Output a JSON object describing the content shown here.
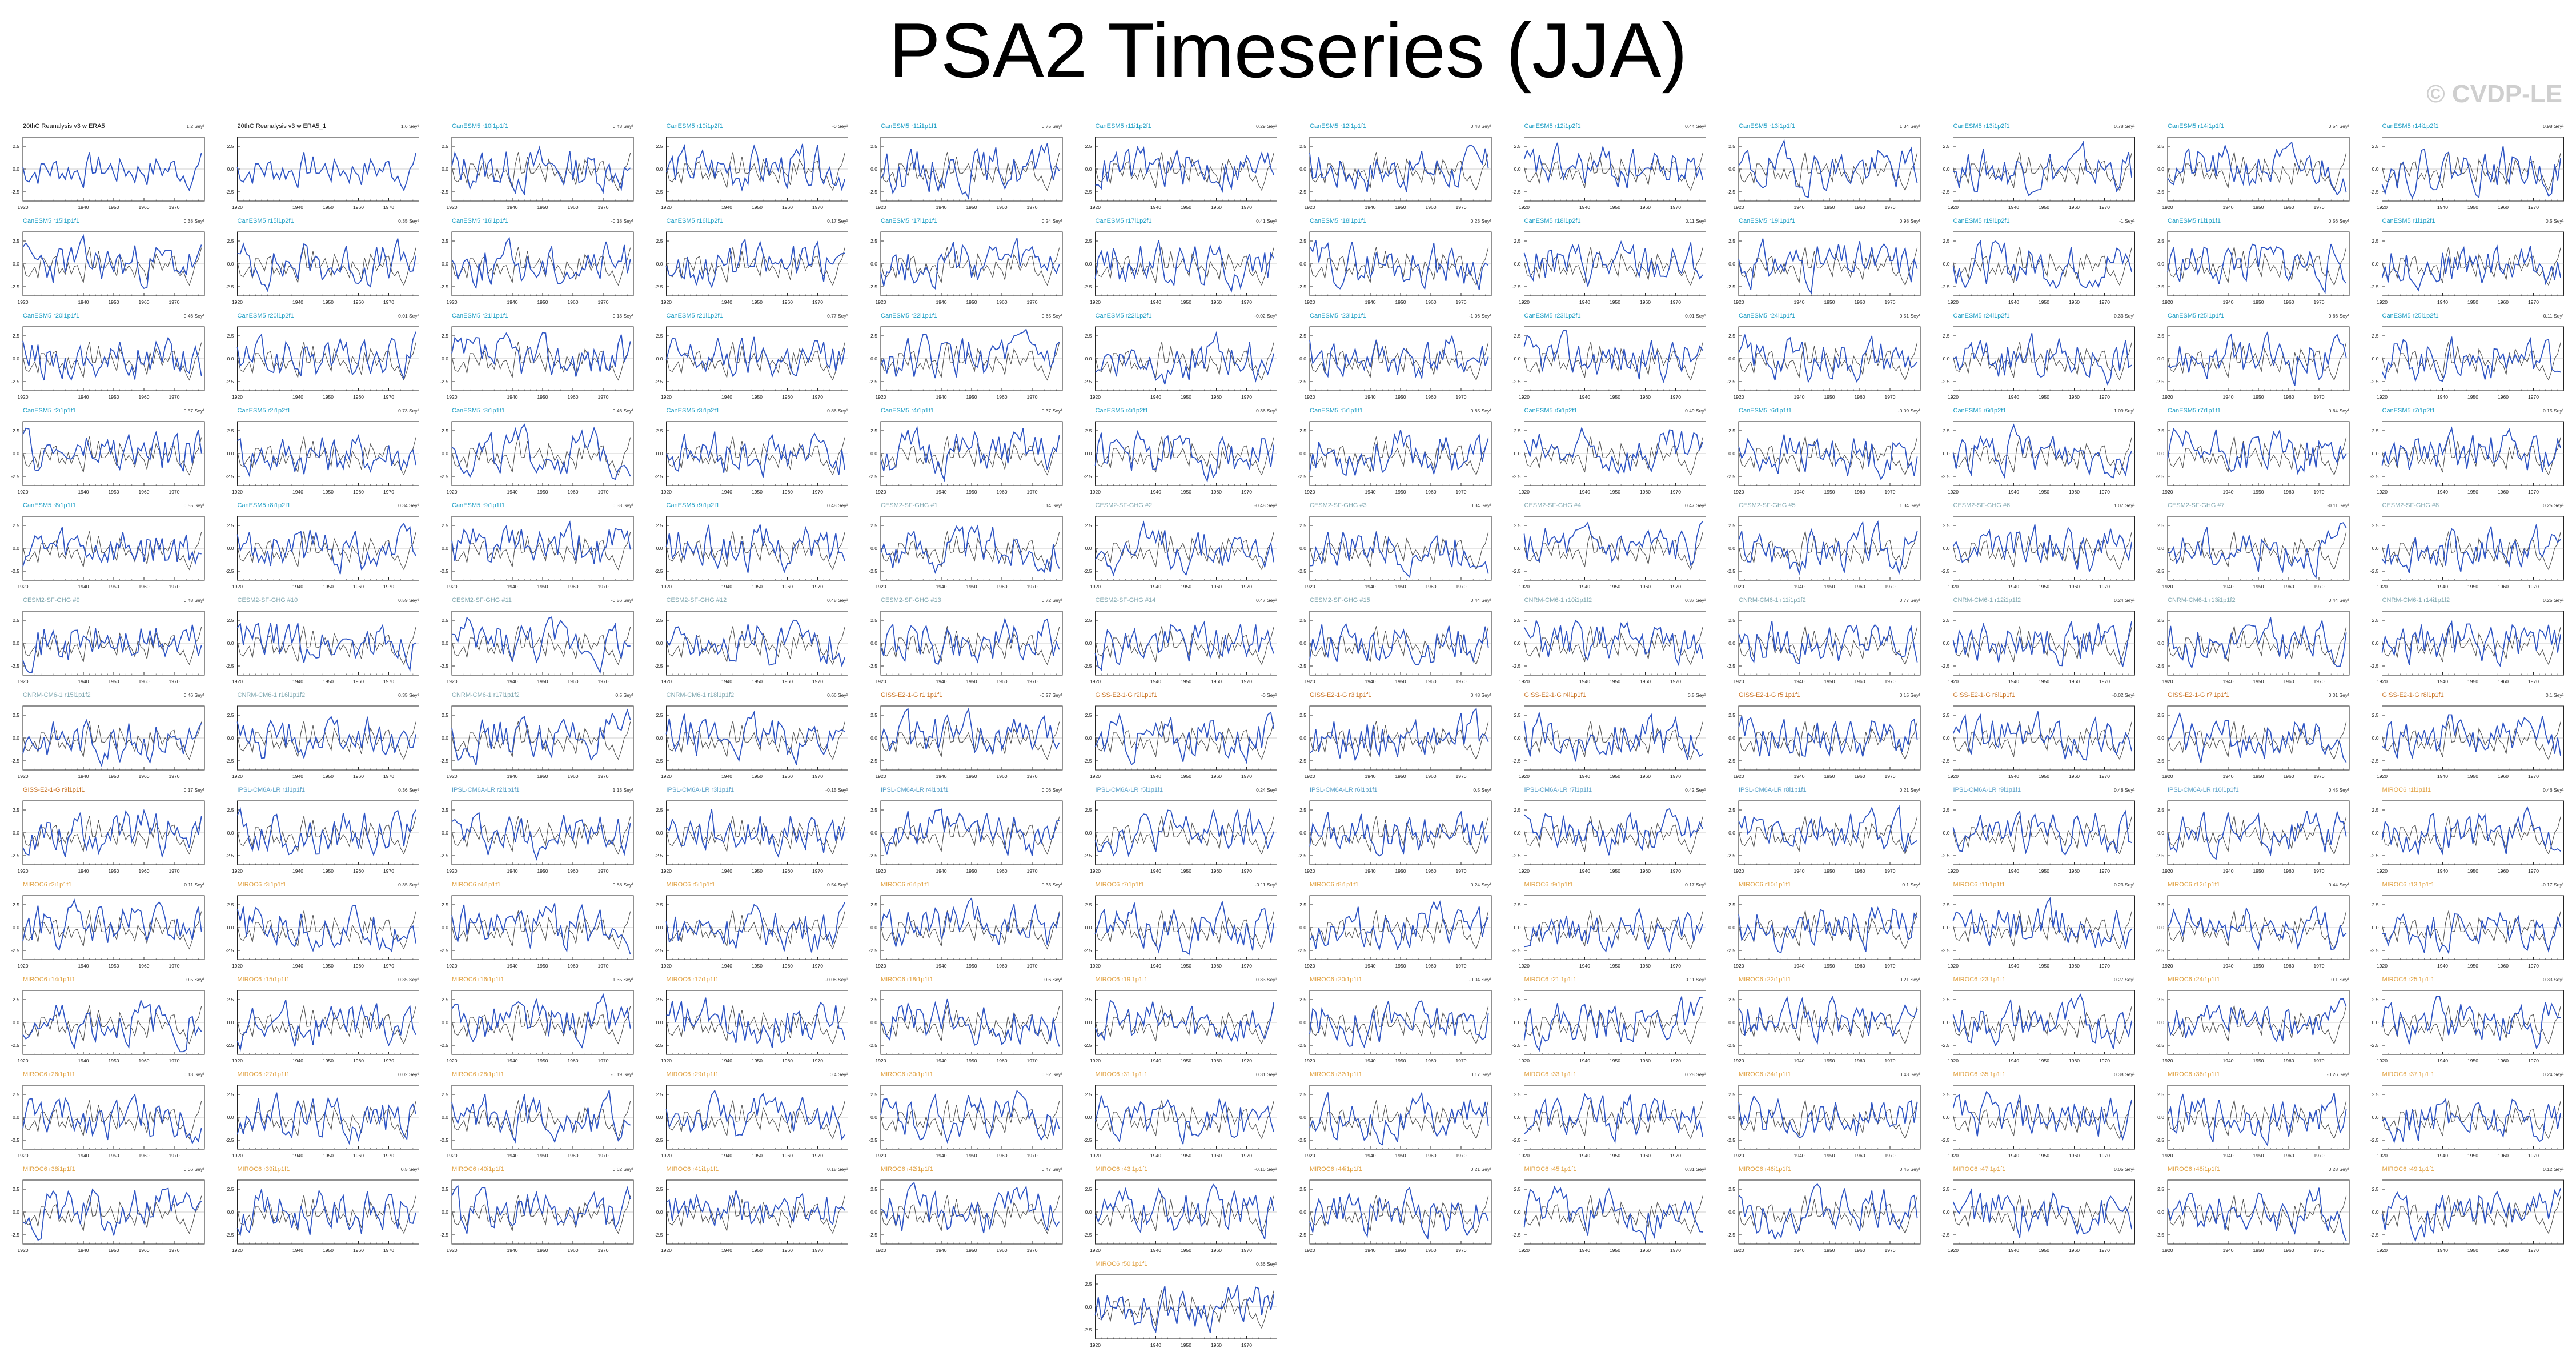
{
  "figure": {
    "title": "PSA2 Timeseries (JJA)",
    "watermark": "© CVDP-LE"
  },
  "colors": {
    "model_line": "#2f55c4",
    "obs_line": "#555555",
    "cesm_title": "#1a9cc4",
    "cesm2_title": "#7fa7b0",
    "giss_title": "#c87020",
    "ipsl_title": "#5aa0c8",
    "miroc_title": "#e0a040"
  },
  "chart_data": {
    "type": "line",
    "layout": "small-multiples",
    "columns": 12,
    "rows": 13,
    "x": [
      1920,
      1921,
      1922,
      1923,
      1924,
      1925,
      1926,
      1927,
      1928,
      1929,
      1930,
      1931,
      1932,
      1933,
      1934,
      1935,
      1936,
      1937,
      1938,
      1939,
      1940,
      1941,
      1942,
      1943,
      1944,
      1945,
      1946,
      1947,
      1948,
      1949,
      1950,
      1951,
      1952,
      1953,
      1954,
      1955,
      1956,
      1957,
      1958,
      1959,
      1960,
      1961,
      1962,
      1963,
      1964,
      1965,
      1966,
      1967,
      1968,
      1969,
      1970,
      1971,
      1972,
      1973,
      1974,
      1975,
      1976,
      1977,
      1978,
      1979
    ],
    "xlim": [
      1920,
      1980
    ],
    "xticks": [
      1920,
      1940,
      1950,
      1960,
      1970
    ],
    "ylim": [
      -3.5,
      3.5
    ],
    "yticks": [
      -2.5,
      0,
      2.5
    ],
    "panels": [
      {
        "title": "20thC Reanalysis v3 w ERA5",
        "trend": "1.2 Sey¹",
        "group": "obs"
      },
      {
        "title": "20thC Reanalysis v3 w ERA5_1",
        "trend": "1.6 Sey¹",
        "group": "obs"
      },
      {
        "title": "CanESM5 r10i1p1f1",
        "trend": "0.43 Sey¹",
        "group": "cesm"
      },
      {
        "title": "CanESM5 r10i1p2f1",
        "trend": "-0 Sey¹",
        "group": "cesm"
      },
      {
        "title": "CanESM5 r11i1p1f1",
        "trend": "0.75 Sey¹",
        "group": "cesm"
      },
      {
        "title": "CanESM5 r11i1p2f1",
        "trend": "0.29 Sey¹",
        "group": "cesm"
      },
      {
        "title": "CanESM5 r12i1p1f1",
        "trend": "0.48 Sey¹",
        "group": "cesm"
      },
      {
        "title": "CanESM5 r12i1p2f1",
        "trend": "0.44 Sey¹",
        "group": "cesm"
      },
      {
        "title": "CanESM5 r13i1p1f1",
        "trend": "1.34 Sey¹",
        "group": "cesm"
      },
      {
        "title": "CanESM5 r13i1p2f1",
        "trend": "0.78 Sey¹",
        "group": "cesm"
      },
      {
        "title": "CanESM5 r14i1p1f1",
        "trend": "0.54 Sey¹",
        "group": "cesm"
      },
      {
        "title": "CanESM5 r14i1p2f1",
        "trend": "0.98 Sey¹",
        "group": "cesm"
      },
      {
        "title": "CanESM5 r15i1p1f1",
        "trend": "0.38 Sey¹",
        "group": "cesm"
      },
      {
        "title": "CanESM5 r15i1p2f1",
        "trend": "0.35 Sey¹",
        "group": "cesm"
      },
      {
        "title": "CanESM5 r16i1p1f1",
        "trend": "-0.18 Sey¹",
        "group": "cesm"
      },
      {
        "title": "CanESM5 r16i1p2f1",
        "trend": "0.17 Sey¹",
        "group": "cesm"
      },
      {
        "title": "CanESM5 r17i1p1f1",
        "trend": "0.24 Sey¹",
        "group": "cesm"
      },
      {
        "title": "CanESM5 r17i1p2f1",
        "trend": "0.41 Sey¹",
        "group": "cesm"
      },
      {
        "title": "CanESM5 r18i1p1f1",
        "trend": "0.23 Sey¹",
        "group": "cesm"
      },
      {
        "title": "CanESM5 r18i1p2f1",
        "trend": "0.11 Sey¹",
        "group": "cesm"
      },
      {
        "title": "CanESM5 r19i1p1f1",
        "trend": "0.98 Sey¹",
        "group": "cesm"
      },
      {
        "title": "CanESM5 r19i1p2f1",
        "trend": "-1 Sey¹",
        "group": "cesm"
      },
      {
        "title": "CanESM5 r1i1p1f1",
        "trend": "0.56 Sey¹",
        "group": "cesm"
      },
      {
        "title": "CanESM5 r1i1p2f1",
        "trend": "0.5 Sey¹",
        "group": "cesm"
      },
      {
        "title": "CanESM5 r20i1p1f1",
        "trend": "0.46 Sey¹",
        "group": "cesm"
      },
      {
        "title": "CanESM5 r20i1p2f1",
        "trend": "0.01 Sey¹",
        "group": "cesm"
      },
      {
        "title": "CanESM5 r21i1p1f1",
        "trend": "0.13 Sey¹",
        "group": "cesm"
      },
      {
        "title": "CanESM5 r21i1p2f1",
        "trend": "0.77 Sey¹",
        "group": "cesm"
      },
      {
        "title": "CanESM5 r22i1p1f1",
        "trend": "0.65 Sey¹",
        "group": "cesm"
      },
      {
        "title": "CanESM5 r22i1p2f1",
        "trend": "-0.02 Sey¹",
        "group": "cesm"
      },
      {
        "title": "CanESM5 r23i1p1f1",
        "trend": "-1.06 Sey¹",
        "group": "cesm"
      },
      {
        "title": "CanESM5 r23i1p2f1",
        "trend": "0.01 Sey¹",
        "group": "cesm"
      },
      {
        "title": "CanESM5 r24i1p1f1",
        "trend": "0.51 Sey¹",
        "group": "cesm"
      },
      {
        "title": "CanESM5 r24i1p2f1",
        "trend": "0.33 Sey¹",
        "group": "cesm"
      },
      {
        "title": "CanESM5 r25i1p1f1",
        "trend": "0.66 Sey¹",
        "group": "cesm"
      },
      {
        "title": "CanESM5 r25i1p2f1",
        "trend": "0.11 Sey¹",
        "group": "cesm"
      },
      {
        "title": "CanESM5 r2i1p1f1",
        "trend": "0.57 Sey¹",
        "group": "cesm"
      },
      {
        "title": "CanESM5 r2i1p2f1",
        "trend": "0.73 Sey¹",
        "group": "cesm"
      },
      {
        "title": "CanESM5 r3i1p1f1",
        "trend": "0.46 Sey¹",
        "group": "cesm"
      },
      {
        "title": "CanESM5 r3i1p2f1",
        "trend": "0.86 Sey¹",
        "group": "cesm"
      },
      {
        "title": "CanESM5 r4i1p1f1",
        "trend": "0.37 Sey¹",
        "group": "cesm"
      },
      {
        "title": "CanESM5 r4i1p2f1",
        "trend": "0.36 Sey¹",
        "group": "cesm"
      },
      {
        "title": "CanESM5 r5i1p1f1",
        "trend": "0.85 Sey¹",
        "group": "cesm"
      },
      {
        "title": "CanESM5 r5i1p2f1",
        "trend": "0.49 Sey¹",
        "group": "cesm"
      },
      {
        "title": "CanESM5 r6i1p1f1",
        "trend": "-0.09 Sey¹",
        "group": "cesm"
      },
      {
        "title": "CanESM5 r6i1p2f1",
        "trend": "1.09 Sey¹",
        "group": "cesm"
      },
      {
        "title": "CanESM5 r7i1p1f1",
        "trend": "0.64 Sey¹",
        "group": "cesm"
      },
      {
        "title": "CanESM5 r7i1p2f1",
        "trend": "0.15 Sey¹",
        "group": "cesm"
      },
      {
        "title": "CanESM5 r8i1p1f1",
        "trend": "0.55 Sey¹",
        "group": "cesm"
      },
      {
        "title": "CanESM5 r8i1p2f1",
        "trend": "0.34 Sey¹",
        "group": "cesm"
      },
      {
        "title": "CanESM5 r9i1p1f1",
        "trend": "0.38 Sey¹",
        "group": "cesm"
      },
      {
        "title": "CanESM5 r9i1p2f1",
        "trend": "0.48 Sey¹",
        "group": "cesm"
      },
      {
        "title": "CESM2-SF-GHG #1",
        "trend": "0.14 Sey¹",
        "group": "cesm2"
      },
      {
        "title": "CESM2-SF-GHG #2",
        "trend": "-0.48 Sey¹",
        "group": "cesm2"
      },
      {
        "title": "CESM2-SF-GHG #3",
        "trend": "0.34 Sey¹",
        "group": "cesm2"
      },
      {
        "title": "CESM2-SF-GHG #4",
        "trend": "0.47 Sey¹",
        "group": "cesm2"
      },
      {
        "title": "CESM2-SF-GHG #5",
        "trend": "1.34 Sey¹",
        "group": "cesm2"
      },
      {
        "title": "CESM2-SF-GHG #6",
        "trend": "1.07 Sey¹",
        "group": "cesm2"
      },
      {
        "title": "CESM2-SF-GHG #7",
        "trend": "-0.11 Sey¹",
        "group": "cesm2"
      },
      {
        "title": "CESM2-SF-GHG #8",
        "trend": "0.25 Sey¹",
        "group": "cesm2"
      },
      {
        "title": "CESM2-SF-GHG #9",
        "trend": "0.48 Sey¹",
        "group": "cesm2"
      },
      {
        "title": "CESM2-SF-GHG #10",
        "trend": "0.59 Sey¹",
        "group": "cesm2"
      },
      {
        "title": "CESM2-SF-GHG #11",
        "trend": "-0.56 Sey¹",
        "group": "cesm2"
      },
      {
        "title": "CESM2-SF-GHG #12",
        "trend": "0.48 Sey¹",
        "group": "cesm2"
      },
      {
        "title": "CESM2-SF-GHG #13",
        "trend": "0.72 Sey¹",
        "group": "cesm2"
      },
      {
        "title": "CESM2-SF-GHG #14",
        "trend": "0.47 Sey¹",
        "group": "cesm2"
      },
      {
        "title": "CESM2-SF-GHG #15",
        "trend": "0.44 Sey¹",
        "group": "cesm2"
      },
      {
        "title": "CNRM-CM6-1 r10i1p1f2",
        "trend": "0.37 Sey¹",
        "group": "cesm2"
      },
      {
        "title": "CNRM-CM6-1 r11i1p1f2",
        "trend": "0.77 Sey¹",
        "group": "cesm2"
      },
      {
        "title": "CNRM-CM6-1 r12i1p1f2",
        "trend": "0.24 Sey¹",
        "group": "cesm2"
      },
      {
        "title": "CNRM-CM6-1 r13i1p1f2",
        "trend": "0.44 Sey¹",
        "group": "cesm2"
      },
      {
        "title": "CNRM-CM6-1 r14i1p1f2",
        "trend": "0.25 Sey¹",
        "group": "cesm2"
      },
      {
        "title": "CNRM-CM6-1 r15i1p1f2",
        "trend": "0.46 Sey¹",
        "group": "cesm2"
      },
      {
        "title": "CNRM-CM6-1 r16i1p1f2",
        "trend": "0.35 Sey¹",
        "group": "cesm2"
      },
      {
        "title": "CNRM-CM6-1 r17i1p1f2",
        "trend": "0.5 Sey¹",
        "group": "cesm2"
      },
      {
        "title": "CNRM-CM6-1 r18i1p1f2",
        "trend": "0.66 Sey¹",
        "group": "cesm2"
      },
      {
        "title": "GISS-E2-1-G r1i1p1f1",
        "trend": "-0.27 Sey¹",
        "group": "giss"
      },
      {
        "title": "GISS-E2-1-G r2i1p1f1",
        "trend": "-0 Sey¹",
        "group": "giss"
      },
      {
        "title": "GISS-E2-1-G r3i1p1f1",
        "trend": "0.48 Sey¹",
        "group": "giss"
      },
      {
        "title": "GISS-E2-1-G r4i1p1f1",
        "trend": "0.5 Sey¹",
        "group": "giss"
      },
      {
        "title": "GISS-E2-1-G r5i1p1f1",
        "trend": "0.15 Sey¹",
        "group": "giss"
      },
      {
        "title": "GISS-E2-1-G r6i1p1f1",
        "trend": "-0.02 Sey¹",
        "group": "giss"
      },
      {
        "title": "GISS-E2-1-G r7i1p1f1",
        "trend": "0.01 Sey¹",
        "group": "giss"
      },
      {
        "title": "GISS-E2-1-G r8i1p1f1",
        "trend": "0.1 Sey¹",
        "group": "giss"
      },
      {
        "title": "GISS-E2-1-G r9i1p1f1",
        "trend": "0.17 Sey¹",
        "group": "giss"
      },
      {
        "title": "IPSL-CM6A-LR r1i1p1f1",
        "trend": "0.36 Sey¹",
        "group": "ipsl"
      },
      {
        "title": "IPSL-CM6A-LR r2i1p1f1",
        "trend": "1.13 Sey¹",
        "group": "ipsl"
      },
      {
        "title": "IPSL-CM6A-LR r3i1p1f1",
        "trend": "-0.15 Sey¹",
        "group": "ipsl"
      },
      {
        "title": "IPSL-CM6A-LR r4i1p1f1",
        "trend": "0.06 Sey¹",
        "group": "ipsl"
      },
      {
        "title": "IPSL-CM6A-LR r5i1p1f1",
        "trend": "0.24 Sey¹",
        "group": "ipsl"
      },
      {
        "title": "IPSL-CM6A-LR r6i1p1f1",
        "trend": "0.5 Sey¹",
        "group": "ipsl"
      },
      {
        "title": "IPSL-CM6A-LR r7i1p1f1",
        "trend": "0.42 Sey¹",
        "group": "ipsl"
      },
      {
        "title": "IPSL-CM6A-LR r8i1p1f1",
        "trend": "0.21 Sey¹",
        "group": "ipsl"
      },
      {
        "title": "IPSL-CM6A-LR r9i1p1f1",
        "trend": "0.48 Sey¹",
        "group": "ipsl"
      },
      {
        "title": "IPSL-CM6A-LR r10i1p1f1",
        "trend": "0.45 Sey¹",
        "group": "ipsl"
      },
      {
        "title": "MIROC6 r1i1p1f1",
        "trend": "0.46 Sey¹",
        "group": "miroc"
      },
      {
        "title": "MIROC6 r2i1p1f1",
        "trend": "0.11 Sey¹",
        "group": "miroc"
      },
      {
        "title": "MIROC6 r3i1p1f1",
        "trend": "0.35 Sey¹",
        "group": "miroc"
      },
      {
        "title": "MIROC6 r4i1p1f1",
        "trend": "0.88 Sey¹",
        "group": "miroc"
      },
      {
        "title": "MIROC6 r5i1p1f1",
        "trend": "0.54 Sey¹",
        "group": "miroc"
      },
      {
        "title": "MIROC6 r6i1p1f1",
        "trend": "0.33 Sey¹",
        "group": "miroc"
      },
      {
        "title": "MIROC6 r7i1p1f1",
        "trend": "-0.11 Sey¹",
        "group": "miroc"
      },
      {
        "title": "MIROC6 r8i1p1f1",
        "trend": "0.24 Sey¹",
        "group": "miroc"
      },
      {
        "title": "MIROC6 r9i1p1f1",
        "trend": "0.17 Sey¹",
        "group": "miroc"
      },
      {
        "title": "MIROC6 r10i1p1f1",
        "trend": "0.1 Sey¹",
        "group": "miroc"
      },
      {
        "title": "MIROC6 r11i1p1f1",
        "trend": "0.23 Sey¹",
        "group": "miroc"
      },
      {
        "title": "MIROC6 r12i1p1f1",
        "trend": "0.44 Sey¹",
        "group": "miroc"
      },
      {
        "title": "MIROC6 r13i1p1f1",
        "trend": "-0.17 Sey¹",
        "group": "miroc"
      },
      {
        "title": "MIROC6 r14i1p1f1",
        "trend": "0.5 Sey¹",
        "group": "miroc"
      },
      {
        "title": "MIROC6 r15i1p1f1",
        "trend": "0.35 Sey¹",
        "group": "miroc"
      },
      {
        "title": "MIROC6 r16i1p1f1",
        "trend": "1.35 Sey¹",
        "group": "miroc"
      },
      {
        "title": "MIROC6 r17i1p1f1",
        "trend": "-0.08 Sey¹",
        "group": "miroc"
      },
      {
        "title": "MIROC6 r18i1p1f1",
        "trend": "0.6 Sey¹",
        "group": "miroc"
      },
      {
        "title": "MIROC6 r19i1p1f1",
        "trend": "0.33 Sey¹",
        "group": "miroc"
      },
      {
        "title": "MIROC6 r20i1p1f1",
        "trend": "-0.04 Sey¹",
        "group": "miroc"
      },
      {
        "title": "MIROC6 r21i1p1f1",
        "trend": "0.11 Sey¹",
        "group": "miroc"
      },
      {
        "title": "MIROC6 r22i1p1f1",
        "trend": "0.21 Sey¹",
        "group": "miroc"
      },
      {
        "title": "MIROC6 r23i1p1f1",
        "trend": "0.27 Sey¹",
        "group": "miroc"
      },
      {
        "title": "MIROC6 r24i1p1f1",
        "trend": "0.1 Sey¹",
        "group": "miroc"
      },
      {
        "title": "MIROC6 r25i1p1f1",
        "trend": "0.33 Sey¹",
        "group": "miroc"
      },
      {
        "title": "MIROC6 r26i1p1f1",
        "trend": "0.13 Sey¹",
        "group": "miroc"
      },
      {
        "title": "MIROC6 r27i1p1f1",
        "trend": "0.02 Sey¹",
        "group": "miroc"
      },
      {
        "title": "MIROC6 r28i1p1f1",
        "trend": "-0.19 Sey¹",
        "group": "miroc"
      },
      {
        "title": "MIROC6 r29i1p1f1",
        "trend": "0.4 Sey¹",
        "group": "miroc"
      },
      {
        "title": "MIROC6 r30i1p1f1",
        "trend": "0.52 Sey¹",
        "group": "miroc"
      },
      {
        "title": "MIROC6 r31i1p1f1",
        "trend": "0.31 Sey¹",
        "group": "miroc"
      },
      {
        "title": "MIROC6 r32i1p1f1",
        "trend": "0.17 Sey¹",
        "group": "miroc"
      },
      {
        "title": "MIROC6 r33i1p1f1",
        "trend": "0.28 Sey¹",
        "group": "miroc"
      },
      {
        "title": "MIROC6 r34i1p1f1",
        "trend": "0.43 Sey¹",
        "group": "miroc"
      },
      {
        "title": "MIROC6 r35i1p1f1",
        "trend": "0.38 Sey¹",
        "group": "miroc"
      },
      {
        "title": "MIROC6 r36i1p1f1",
        "trend": "-0.26 Sey¹",
        "group": "miroc"
      },
      {
        "title": "MIROC6 r37i1p1f1",
        "trend": "0.24 Sey¹",
        "group": "miroc"
      },
      {
        "title": "MIROC6 r38i1p1f1",
        "trend": "0.06 Sey¹",
        "group": "miroc"
      },
      {
        "title": "MIROC6 r39i1p1f1",
        "trend": "0.5 Sey¹",
        "group": "miroc"
      },
      {
        "title": "MIROC6 r40i1p1f1",
        "trend": "0.62 Sey¹",
        "group": "miroc"
      },
      {
        "title": "MIROC6 r41i1p1f1",
        "trend": "0.18 Sey¹",
        "group": "miroc"
      },
      {
        "title": "MIROC6 r42i1p1f1",
        "trend": "0.47 Sey¹",
        "group": "miroc"
      },
      {
        "title": "MIROC6 r43i1p1f1",
        "trend": "-0.16 Sey¹",
        "group": "miroc"
      },
      {
        "title": "MIROC6 r44i1p1f1",
        "trend": "0.21 Sey¹",
        "group": "miroc"
      },
      {
        "title": "MIROC6 r45i1p1f1",
        "trend": "0.31 Sey¹",
        "group": "miroc"
      },
      {
        "title": "MIROC6 r46i1p1f1",
        "trend": "0.45 Sey¹",
        "group": "miroc"
      },
      {
        "title": "MIROC6 r47i1p1f1",
        "trend": "0.05 Sey¹",
        "group": "miroc"
      },
      {
        "title": "MIROC6 r48i1p1f1",
        "trend": "0.28 Sey¹",
        "group": "miroc"
      },
      {
        "title": "MIROC6 r49i1p1f1",
        "trend": "0.12 Sey¹",
        "group": "miroc"
      },
      {
        "title": "MIROC6 r50i1p1f1",
        "trend": "0.36 Sey¹",
        "group": "miroc"
      }
    ]
  }
}
